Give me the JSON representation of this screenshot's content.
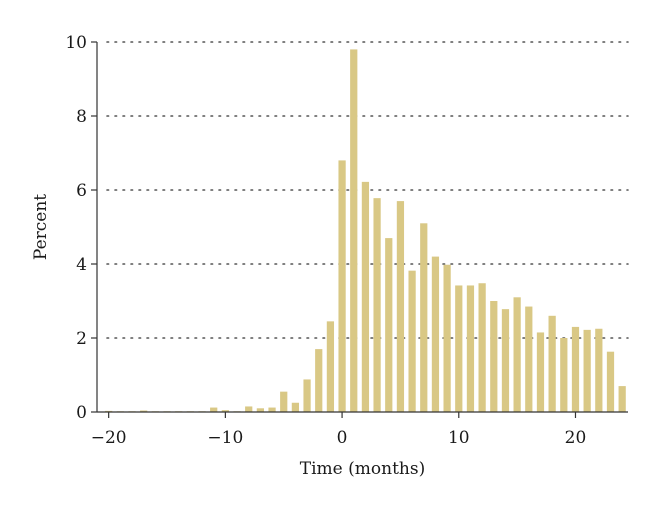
{
  "chart_data": {
    "type": "bar",
    "xlabel": "Time (months)",
    "ylabel": "Percent",
    "xlim": [
      -21,
      24.5
    ],
    "ylim": [
      0,
      10
    ],
    "xticks": [
      -20,
      -10,
      0,
      10,
      20
    ],
    "yticks": [
      0,
      2,
      4,
      6,
      8,
      10
    ],
    "x_tick_labels": [
      "−20",
      "−10",
      "0",
      "10",
      "20"
    ],
    "y_tick_labels": [
      "0",
      "2",
      "4",
      "6",
      "8",
      "10"
    ],
    "grid": "horizontal-dotted",
    "bar_color": "#d9c885",
    "x": [
      -20,
      -19,
      -18,
      -17,
      -16,
      -15,
      -14,
      -13,
      -12,
      -11,
      -10,
      -9,
      -8,
      -7,
      -6,
      -5,
      -4,
      -3,
      -2,
      -1,
      0,
      1,
      2,
      3,
      4,
      5,
      6,
      7,
      8,
      9,
      10,
      11,
      12,
      13,
      14,
      15,
      16,
      17,
      18,
      19,
      20,
      21,
      22,
      23,
      24
    ],
    "values": [
      0.03,
      0.02,
      0.02,
      0.04,
      0.02,
      0.02,
      0.02,
      0.02,
      0.02,
      0.12,
      0.05,
      0.02,
      0.15,
      0.1,
      0.12,
      0.55,
      0.25,
      0.88,
      1.7,
      2.45,
      6.8,
      9.8,
      6.22,
      5.78,
      4.7,
      5.7,
      3.82,
      5.1,
      4.2,
      3.98,
      3.42,
      3.42,
      3.48,
      3.0,
      2.78,
      3.1,
      2.85,
      2.15,
      2.6,
      2.0,
      2.3,
      2.22,
      2.25,
      1.63,
      0.7
    ]
  }
}
